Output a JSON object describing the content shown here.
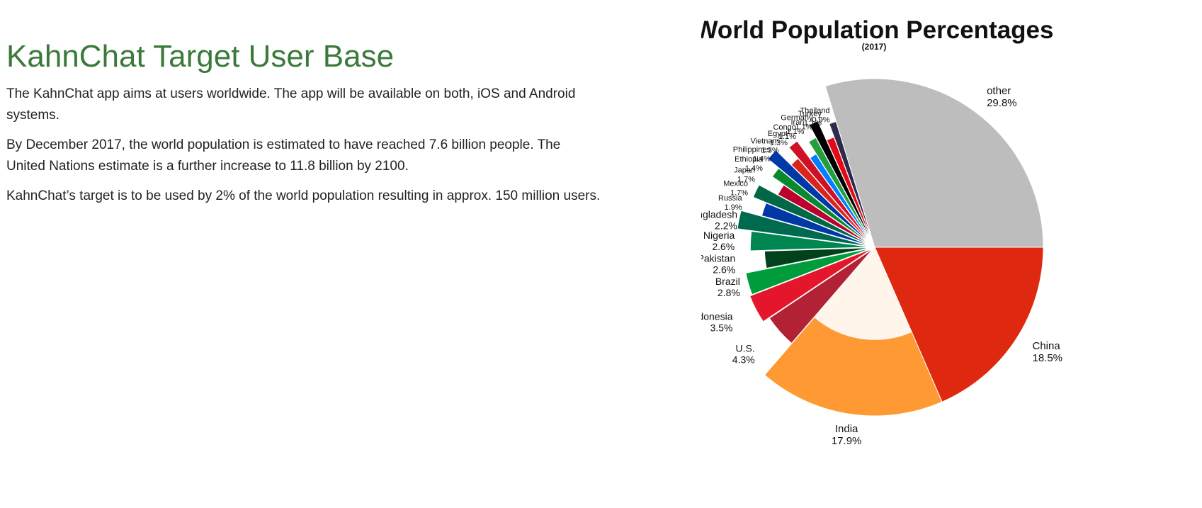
{
  "header": {
    "title": "KahnChat Target User Base"
  },
  "paragraphs": [
    "The KahnChat app aims at users worldwide. The app will be available on both, iOS and Android systems.",
    "By December 2017, the world population is estimated to have reached 7.6 billion people. The United Nations estimate is a further increase to 11.8 billion by 2100.",
    "KahnChat’s target is to be used by 2% of the world population resulting in approx. 150 million users."
  ],
  "chart_data": {
    "type": "pie",
    "title": "World Population Percentages",
    "subtitle": "(2017)",
    "slices": [
      {
        "label": "China",
        "value_label": "18.5%",
        "value": 18.5,
        "color": "#de2910"
      },
      {
        "label": "India",
        "value_label": "17.9%",
        "value": 17.9,
        "color": "#ff9933"
      },
      {
        "label": "U.S.",
        "value_label": "4.3%",
        "value": 4.3,
        "color": "#b22234"
      },
      {
        "label": "Indonesia",
        "value_label": "3.5%",
        "value": 3.5,
        "color": "#e4162b"
      },
      {
        "label": "Brazil",
        "value_label": "2.8%",
        "value": 2.8,
        "color": "#009c3b"
      },
      {
        "label": "Pakistan",
        "value_label": "2.6%",
        "value": 2.6,
        "color": "#01411c"
      },
      {
        "label": "Nigeria",
        "value_label": "2.6%",
        "value": 2.6,
        "color": "#008751"
      },
      {
        "label": "Bangladesh",
        "value_label": "2.2%",
        "value": 2.2,
        "color": "#006a4e"
      },
      {
        "label": "Russia",
        "value_label": "1.9%",
        "value": 1.9,
        "color": "#0039a6"
      },
      {
        "label": "Mexico",
        "value_label": "1.7%",
        "value": 1.7,
        "color": "#006847"
      },
      {
        "label": "Japan",
        "value_label": "1.7%",
        "value": 1.7,
        "color": "#bc002d"
      },
      {
        "label": "Ethiopia",
        "value_label": "1.4%",
        "value": 1.4,
        "color": "#078930"
      },
      {
        "label": "Philippines",
        "value_label": "1.4%",
        "value": 1.4,
        "color": "#0038a8"
      },
      {
        "label": "Vietnam",
        "value_label": "1.3%",
        "value": 1.3,
        "color": "#da251d"
      },
      {
        "label": "Egypt",
        "value_label": "1.3%",
        "value": 1.3,
        "color": "#ce1126"
      },
      {
        "label": "Congo",
        "value_label": "1.1%",
        "value": 1.1,
        "color": "#007fff"
      },
      {
        "label": "Iran",
        "value_label": "1.1%",
        "value": 1.1,
        "color": "#239f40"
      },
      {
        "label": "Germany",
        "value_label": "1.1%",
        "value": 1.1,
        "color": "#000000"
      },
      {
        "label": "Turkey",
        "value_label": "1.1%",
        "value": 1.1,
        "color": "#e30a17"
      },
      {
        "label": "Thailand",
        "value_label": "0.9%",
        "value": 0.9,
        "color": "#2d2a4a"
      },
      {
        "label": "other",
        "value_label": "29.8%",
        "value": 29.8,
        "color": "#bdbdbd"
      }
    ]
  }
}
